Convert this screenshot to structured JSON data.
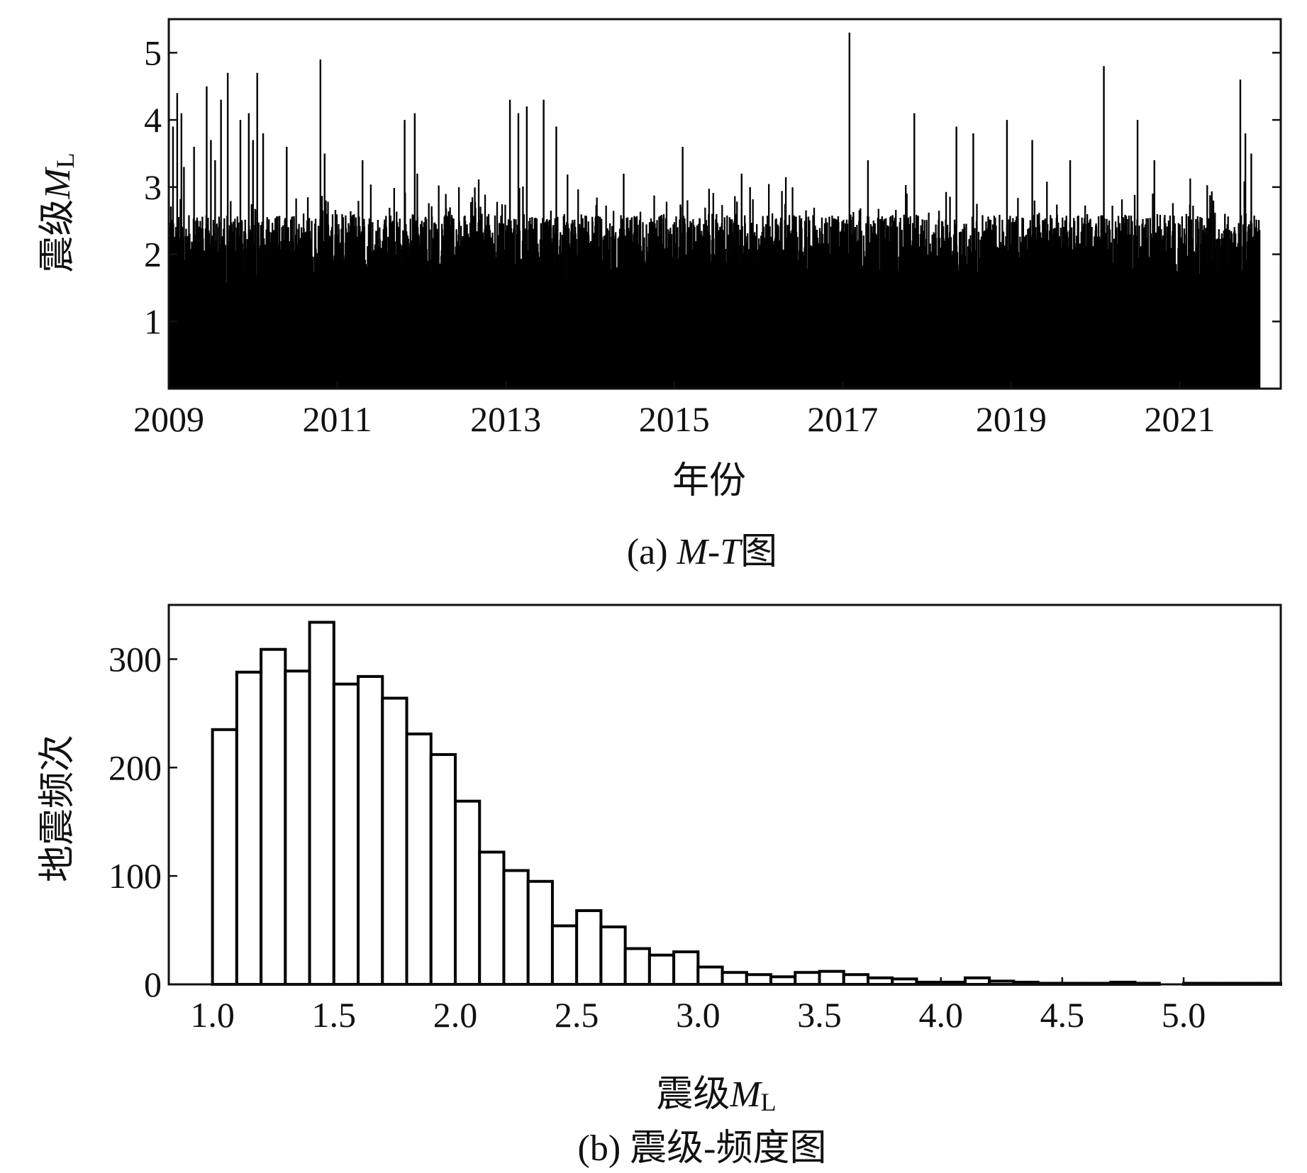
{
  "chart_data": [
    {
      "type": "bar",
      "caption": "(a) M-T图",
      "caption_parts": {
        "prefix": "(a) ",
        "italic": "M-T",
        "suffix": "图"
      },
      "xlabel": "年份",
      "ylabel": "震级M",
      "ylabel_parts": {
        "main": "震级",
        "italic": "M",
        "subscript": "L"
      },
      "xlim": [
        2009.0,
        2022.2
      ],
      "ylim": [
        0,
        5.5
      ],
      "xticks": [
        2009,
        2011,
        2013,
        2015,
        2017,
        2019,
        2021
      ],
      "xtick_labels": [
        "2009",
        "2011",
        "2013",
        "2015",
        "2017",
        "2019",
        "2021"
      ],
      "yticks": [
        1,
        2,
        3,
        4,
        5
      ],
      "ytick_labels": [
        "1",
        "2",
        "3",
        "4",
        "5"
      ],
      "grid": false,
      "events": {
        "x": [
          2009.05,
          2009.1,
          2009.15,
          2009.18,
          2009.3,
          2009.45,
          2009.5,
          2009.55,
          2009.62,
          2009.7,
          2009.85,
          2009.95,
          2010.0,
          2010.05,
          2010.12,
          2010.4,
          2010.8,
          2010.85,
          2011.3,
          2011.8,
          2011.92,
          2011.95,
          2013.05,
          2013.15,
          2013.25,
          2013.45,
          2013.6,
          2014.4,
          2015.1,
          2015.8,
          2015.9,
          2017.08,
          2017.3,
          2017.85,
          2018.35,
          2018.55,
          2018.95,
          2019.25,
          2019.7,
          2020.1,
          2020.5,
          2020.7,
          2021.4,
          2021.72,
          2021.78,
          2021.85
        ],
        "values": [
          3.9,
          4.4,
          4.1,
          3.3,
          3.6,
          4.5,
          3.7,
          3.4,
          4.3,
          4.7,
          4.0,
          4.1,
          3.7,
          4.7,
          3.8,
          3.6,
          4.9,
          3.5,
          3.4,
          4.0,
          4.1,
          3.2,
          4.3,
          4.1,
          4.2,
          4.3,
          3.9,
          3.2,
          3.6,
          3.2,
          3.0,
          5.3,
          3.4,
          4.1,
          3.9,
          3.8,
          4.0,
          3.7,
          3.4,
          4.8,
          4.0,
          3.4,
          2.8,
          4.6,
          3.8,
          3.5
        ]
      }
    },
    {
      "type": "bar",
      "caption": "(b) 震级-频度图",
      "xlabel": "震级M",
      "xlabel_parts": {
        "main": "震级",
        "italic": "M",
        "subscript": "L"
      },
      "ylabel": "地震频次",
      "xlim": [
        0.82,
        5.4
      ],
      "ylim": [
        0,
        350
      ],
      "xticks": [
        1.0,
        1.5,
        2.0,
        2.5,
        3.0,
        3.5,
        4.0,
        4.5,
        5.0
      ],
      "xtick_labels": [
        "1.0",
        "1.5",
        "2.0",
        "2.5",
        "3.0",
        "3.5",
        "4.0",
        "4.5",
        "5.0"
      ],
      "yticks": [
        0,
        100,
        200,
        300
      ],
      "ytick_labels": [
        "0",
        "100",
        "200",
        "300"
      ],
      "grid": false,
      "bin_width": 0.1,
      "bins": [
        1.0,
        1.1,
        1.2,
        1.3,
        1.4,
        1.5,
        1.6,
        1.7,
        1.8,
        1.9,
        2.0,
        2.1,
        2.2,
        2.3,
        2.4,
        2.5,
        2.6,
        2.7,
        2.8,
        2.9,
        3.0,
        3.1,
        3.2,
        3.3,
        3.4,
        3.5,
        3.6,
        3.7,
        3.8,
        3.9,
        4.0,
        4.1,
        4.2,
        4.3,
        4.4,
        4.5,
        4.6,
        4.7,
        4.8,
        4.9,
        5.0,
        5.1,
        5.2,
        5.3
      ],
      "values": [
        235,
        288,
        309,
        289,
        334,
        277,
        284,
        264,
        231,
        212,
        169,
        122,
        105,
        95,
        54,
        68,
        53,
        33,
        27,
        30,
        16,
        11,
        9,
        7,
        11,
        12,
        9,
        6,
        5,
        2,
        2,
        6,
        3,
        2,
        1,
        1,
        1,
        2,
        1,
        0,
        1,
        1,
        1,
        1
      ]
    }
  ]
}
